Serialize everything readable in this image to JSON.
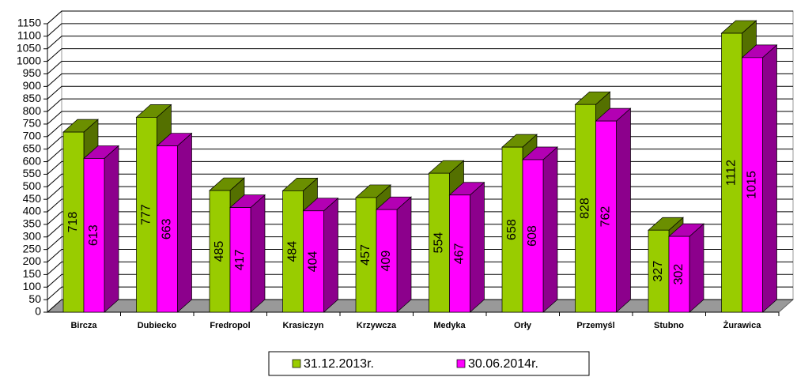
{
  "chart_data": {
    "type": "bar3d",
    "categories": [
      "Bircza",
      "Dubiecko",
      "Fredropol",
      "Krasiczyn",
      "Krzywcza",
      "Medyka",
      "Orły",
      "Przemyśl",
      "Stubno",
      "Żurawica"
    ],
    "series": [
      {
        "name": "31.12.2013r.",
        "color": "#99cc00",
        "values": [
          718,
          777,
          485,
          484,
          457,
          554,
          658,
          828,
          327,
          1112
        ]
      },
      {
        "name": "30.06.2014r.",
        "color": "#ff00ff",
        "values": [
          613,
          663,
          417,
          404,
          409,
          467,
          608,
          762,
          302,
          1015
        ]
      }
    ],
    "ylim": [
      0,
      1150
    ],
    "yticks": [
      0,
      50,
      100,
      150,
      200,
      250,
      300,
      350,
      400,
      450,
      500,
      550,
      600,
      650,
      700,
      750,
      800,
      850,
      900,
      950,
      1000,
      1050,
      1100,
      1150
    ],
    "grid": true
  }
}
